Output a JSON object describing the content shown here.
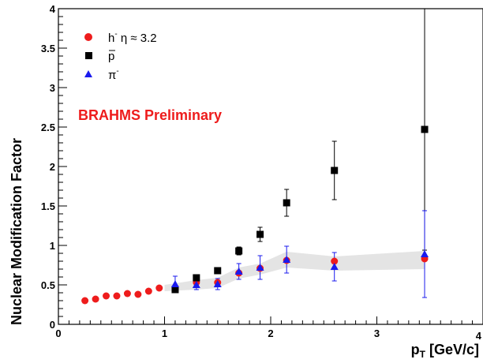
{
  "chart_data": {
    "type": "scatter",
    "title": "",
    "xlabel": "p",
    "xlabel_sub": "T",
    "xlabel_units": " [GeV/c]",
    "ylabel": "Nuclear Modification Factor",
    "xlim": [
      0,
      4
    ],
    "ylim": [
      0,
      4
    ],
    "x_ticks": [
      "0",
      "1",
      "2",
      "3",
      "4"
    ],
    "y_ticks": [
      "0",
      "0.5",
      "1",
      "1.5",
      "2",
      "2.5",
      "3",
      "3.5",
      "4"
    ],
    "grid": false,
    "legend_position": "top-left",
    "annotation": "BRAHMS Preliminary",
    "colors": {
      "annotation": "#ee1c1c",
      "band": "#e4e4e4",
      "series": [
        "#ee1c1c",
        "#000000",
        "#1a1aee"
      ]
    },
    "band": {
      "x": [
        1.0,
        1.3,
        1.5,
        1.7,
        1.9,
        2.15,
        2.6,
        3.45
      ],
      "lower": [
        0.42,
        0.44,
        0.46,
        0.58,
        0.63,
        0.72,
        0.68,
        0.7
      ],
      "upper": [
        0.5,
        0.56,
        0.59,
        0.72,
        0.77,
        0.92,
        0.86,
        0.93
      ]
    },
    "series": [
      {
        "legend_main": "h",
        "legend_sup": "-",
        "legend_extra": " η ≈ 3.2",
        "marker": "circle",
        "color": "#ee1c1c",
        "x": [
          0.25,
          0.35,
          0.45,
          0.55,
          0.65,
          0.75,
          0.85,
          0.95,
          1.1,
          1.3,
          1.5,
          1.7,
          1.9,
          2.15,
          2.6,
          3.45
        ],
        "y": [
          0.3,
          0.32,
          0.36,
          0.36,
          0.39,
          0.38,
          0.42,
          0.46,
          0.46,
          0.53,
          0.53,
          0.65,
          0.71,
          0.81,
          0.8,
          0.83
        ],
        "err": [
          0,
          0,
          0,
          0,
          0,
          0,
          0,
          0,
          0,
          0,
          0,
          0,
          0,
          0,
          0,
          0
        ]
      },
      {
        "legend_main": "p",
        "legend_sup": "",
        "legend_extra": "",
        "legend_overline": true,
        "marker": "square",
        "color": "#000000",
        "x": [
          1.1,
          1.3,
          1.5,
          1.7,
          1.9,
          2.15,
          2.6,
          3.45
        ],
        "y": [
          0.44,
          0.59,
          0.68,
          0.93,
          1.14,
          1.54,
          1.95,
          2.47
        ],
        "err": [
          0.03,
          0.04,
          0.04,
          0.05,
          0.09,
          0.17,
          0.37,
          1.53
        ]
      },
      {
        "legend_main": "π",
        "legend_sup": "-",
        "legend_extra": "",
        "marker": "triangle",
        "color": "#1a1aee",
        "x": [
          1.1,
          1.3,
          1.5,
          1.7,
          1.9,
          2.15,
          2.6,
          3.45
        ],
        "y": [
          0.51,
          0.5,
          0.51,
          0.67,
          0.72,
          0.82,
          0.73,
          0.89
        ],
        "err": [
          0.1,
          0.06,
          0.07,
          0.1,
          0.15,
          0.17,
          0.18,
          0.55
        ]
      }
    ]
  }
}
